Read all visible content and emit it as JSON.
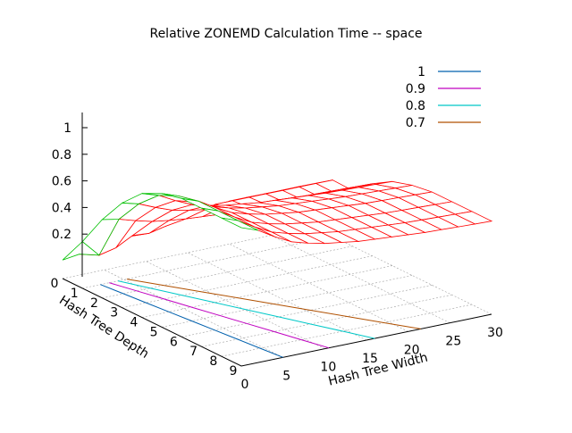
{
  "chart_data": {
    "type": "surface3d",
    "title": "Relative ZONEMD Calculation Time -- space",
    "xlabel": "Hash Tree Width",
    "ylabel": "Hash Tree Depth",
    "zlabel": "",
    "x_ticks": [
      "0",
      "5",
      "10",
      "15",
      "20",
      "25",
      "30"
    ],
    "y_ticks": [
      "0",
      "1",
      "2",
      "3",
      "4",
      "5",
      "6",
      "7",
      "8",
      "9"
    ],
    "z_ticks": [
      "0.2",
      "0.4",
      "0.6",
      "0.8",
      "1"
    ],
    "xlim": [
      0,
      30
    ],
    "ylim": [
      0,
      9
    ],
    "zlim": [
      0,
      1.1
    ],
    "surface_color": "#ff0000",
    "underside_color": "#00c000",
    "grid": true,
    "legend_position": "top-right",
    "contour_levels": [
      {
        "name": "1",
        "level": 1.0,
        "color": "#0060ad"
      },
      {
        "name": "0.9",
        "level": 0.9,
        "color": "#c000c0"
      },
      {
        "name": "0.8",
        "level": 0.8,
        "color": "#00c8c8"
      },
      {
        "name": "0.7",
        "level": 0.7,
        "color": "#b05000"
      }
    ],
    "width_samples": [
      0,
      2,
      4,
      6,
      8,
      10,
      12,
      14,
      16,
      18,
      20,
      22,
      24,
      26,
      28,
      30
    ],
    "depth_samples": [
      0,
      1,
      2,
      3,
      4,
      5,
      6,
      7,
      8,
      9
    ],
    "depth_profile": [
      0,
      0.25,
      0.5,
      0.72,
      0.88,
      0.96,
      1.0,
      1.0,
      1.0,
      1.0
    ],
    "width_profile": [
      1,
      0.95,
      0.87,
      0.8,
      0.76,
      0.73,
      0.71,
      0.69,
      0.68,
      0.67,
      0.66,
      0.65,
      0.645,
      0.64,
      0.635,
      0.63
    ]
  }
}
